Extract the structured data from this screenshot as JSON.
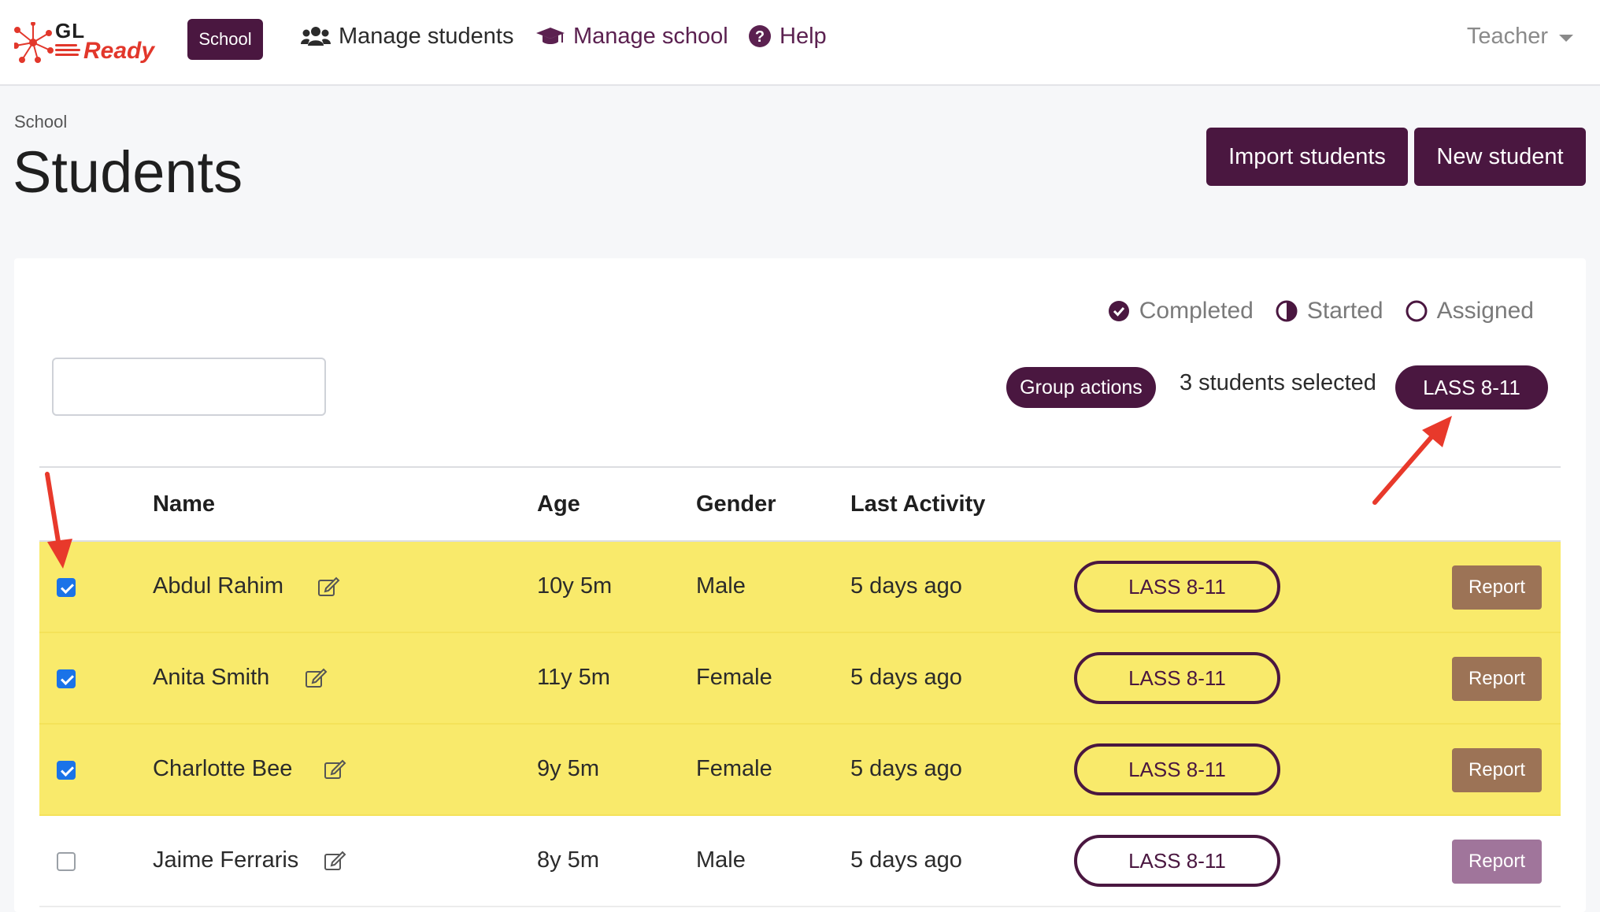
{
  "brand": {
    "logo_gl": "GL",
    "logo_ready": "Ready",
    "badge": "School"
  },
  "nav": {
    "manage_students": "Manage students",
    "manage_school": "Manage school",
    "help": "Help",
    "user_menu": "Teacher"
  },
  "header": {
    "breadcrumb": "School",
    "title": "Students",
    "import_button": "Import students",
    "new_button": "New student"
  },
  "legend": {
    "completed": "Completed",
    "started": "Started",
    "assigned": "Assigned"
  },
  "toolbar": {
    "search_value": "",
    "group_actions": "Group actions",
    "selected_text": "3 students selected",
    "lass_filter": "LASS 8-11"
  },
  "table": {
    "columns": {
      "name": "Name",
      "age": "Age",
      "gender": "Gender",
      "last_activity": "Last Activity"
    },
    "rows": [
      {
        "name": "Abdul Rahim",
        "age": "10y 5m",
        "gender": "Male",
        "last_activity": "5 days ago",
        "assessment": "LASS 8-11",
        "report": "Report",
        "checked": true
      },
      {
        "name": "Anita Smith",
        "age": "11y 5m",
        "gender": "Female",
        "last_activity": "5 days ago",
        "assessment": "LASS 8-11",
        "report": "Report",
        "checked": true
      },
      {
        "name": "Charlotte Bee",
        "age": "9y 5m",
        "gender": "Female",
        "last_activity": "5 days ago",
        "assessment": "LASS 8-11",
        "report": "Report",
        "checked": true
      },
      {
        "name": "Jaime Ferraris",
        "age": "8y 5m",
        "gender": "Male",
        "last_activity": "5 days ago",
        "assessment": "LASS 8-11",
        "report": "Report",
        "checked": false
      }
    ]
  },
  "colors": {
    "brand_purple": "#4a1740",
    "selected_row": "#f9ea6b",
    "report_button": "#9c7356",
    "annotation_arrow": "#e8392b"
  }
}
